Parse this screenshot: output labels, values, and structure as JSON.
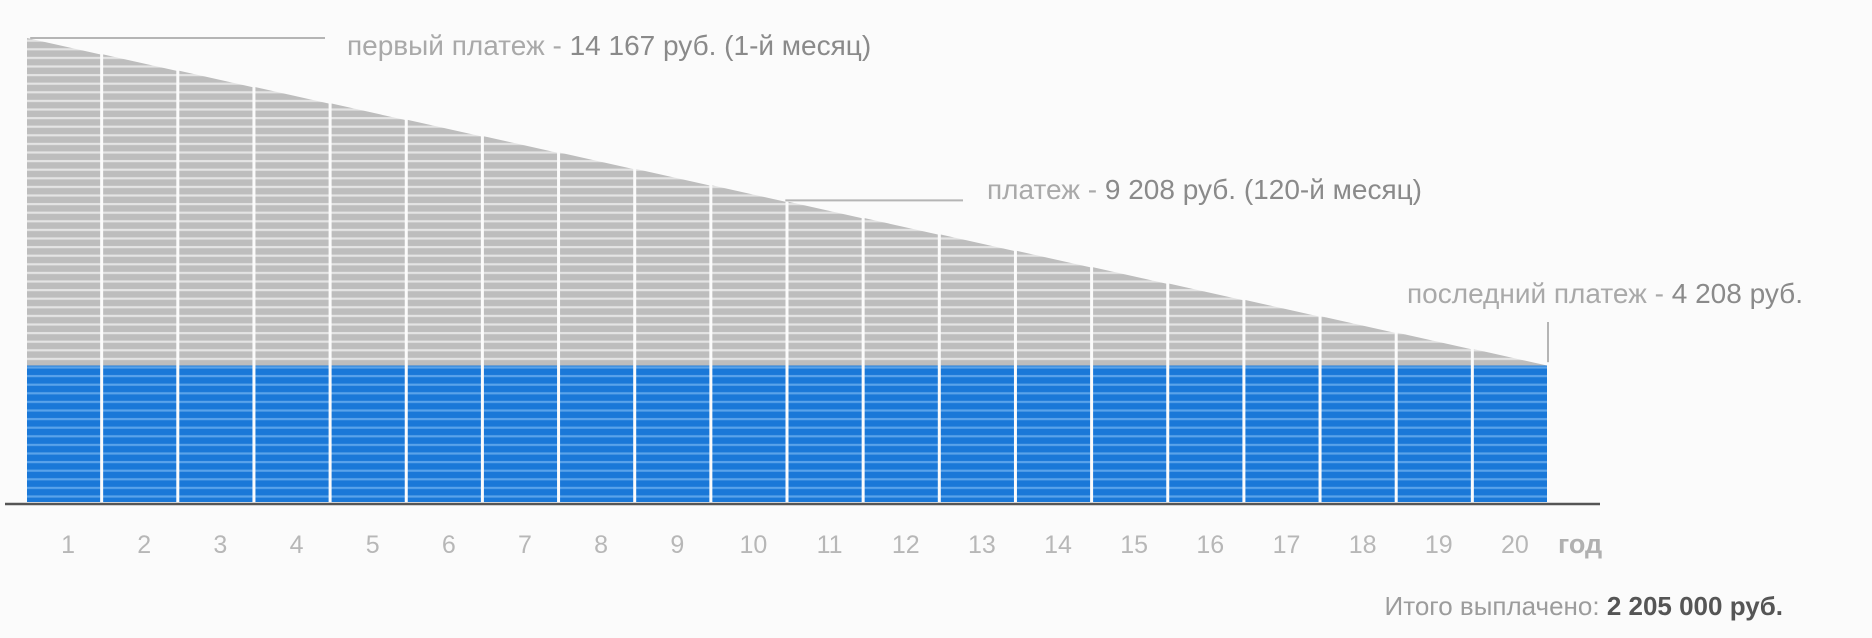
{
  "chart_data": {
    "type": "bar",
    "stacked": true,
    "x": [
      1,
      2,
      3,
      4,
      5,
      6,
      7,
      8,
      9,
      10,
      11,
      12,
      13,
      14,
      15,
      16,
      17,
      18,
      19,
      20
    ],
    "x_unit": "год",
    "x_tick_labels": [
      "1",
      "2",
      "3",
      "4",
      "5",
      "6",
      "7",
      "8",
      "9",
      "10",
      "11",
      "12",
      "13",
      "14",
      "15",
      "16",
      "17",
      "18",
      "19",
      "20"
    ],
    "series": [
      {
        "values": [
          4167,
          4167,
          4167,
          4167,
          4167,
          4167,
          4167,
          4167,
          4167,
          4167,
          4167,
          4167,
          4167,
          4167,
          4167,
          4167,
          4167,
          4167,
          4167,
          4167
        ],
        "color": "#1a78d8"
      },
      {
        "values": [
          9750,
          9250,
          8750,
          8250,
          7750,
          7250,
          6750,
          6250,
          5750,
          5250,
          4750,
          4250,
          3750,
          3250,
          2750,
          2250,
          1750,
          1250,
          750,
          250
        ],
        "color": "#bcbcbc"
      }
    ],
    "ylim": [
      0,
      14167
    ],
    "grid": false,
    "legend": "none",
    "annotations": [
      {
        "prefix": "первый платеж - ",
        "value": "14 167 руб. (1-й месяц)",
        "month": 1,
        "amount": 14167
      },
      {
        "prefix": "платеж - ",
        "value": "9 208 руб. (120-й месяц)",
        "month": 120,
        "amount": 9208
      },
      {
        "prefix": "последний платеж - ",
        "value": "4 208 руб.",
        "month": 240,
        "amount": 4208
      }
    ],
    "total": {
      "label": "Итого выплачено: ",
      "value": "2 205 000 руб."
    }
  },
  "colors": {
    "principal": "#1a78d8",
    "interest": "#bcbcbc",
    "axis": "#555555",
    "leader_line": "#b5b5b5"
  }
}
